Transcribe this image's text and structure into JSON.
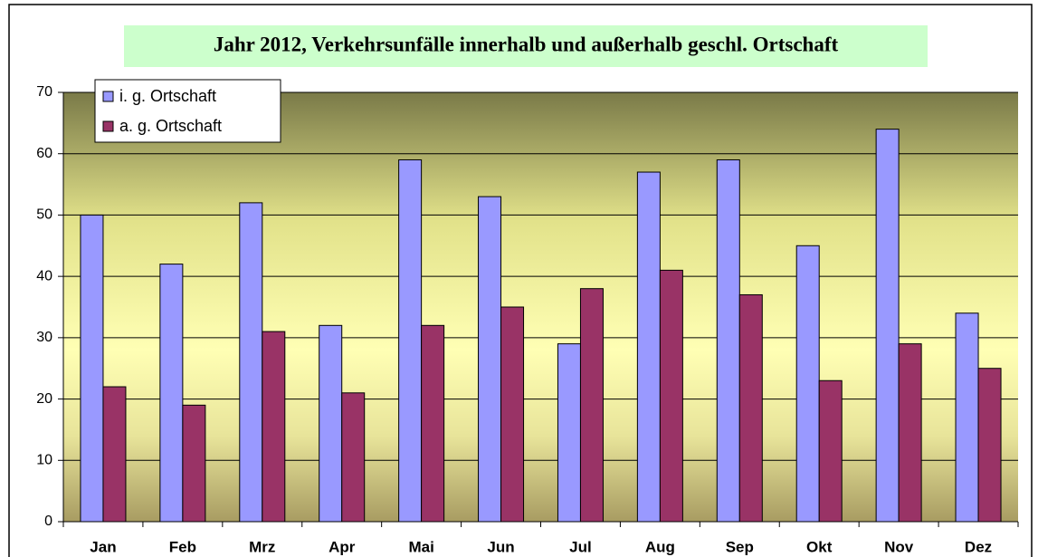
{
  "chart_data": {
    "type": "bar",
    "title": "Jahr 2012, Verkehrsunfälle innerhalb und außerhalb geschl. Ortschaft",
    "categories": [
      "Jan",
      "Feb",
      "Mrz",
      "Apr",
      "Mai",
      "Jun",
      "Jul",
      "Aug",
      "Sep",
      "Okt",
      "Nov",
      "Dez"
    ],
    "series": [
      {
        "name": "i. g. Ortschaft",
        "color": "#9999ff",
        "values": [
          50,
          42,
          52,
          32,
          59,
          53,
          29,
          57,
          59,
          45,
          64,
          34
        ]
      },
      {
        "name": "a. g. Ortschaft",
        "color": "#993366",
        "values": [
          22,
          19,
          31,
          21,
          32,
          35,
          38,
          41,
          37,
          23,
          29,
          25
        ]
      }
    ],
    "ylim": [
      0,
      70
    ],
    "yticks": [
      0,
      10,
      20,
      30,
      40,
      50,
      60,
      70
    ],
    "grid": true,
    "legend": "top-left"
  }
}
